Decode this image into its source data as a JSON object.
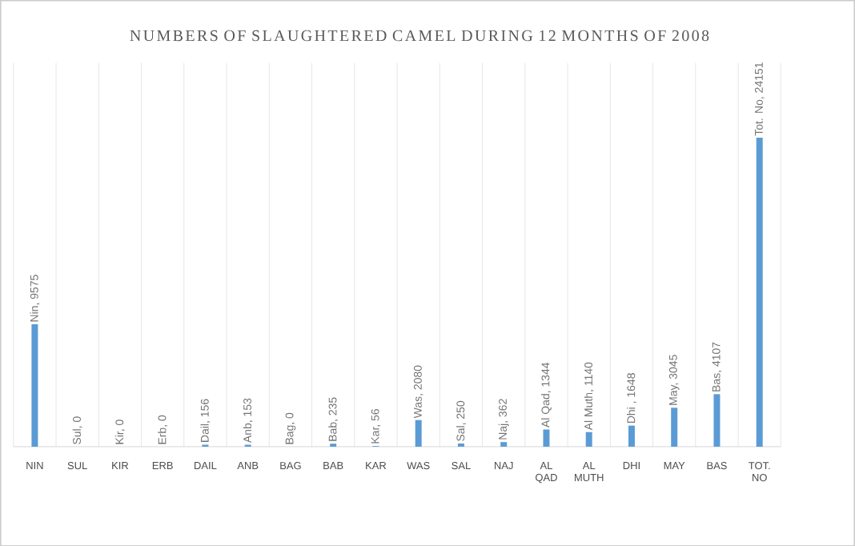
{
  "chart_data": {
    "type": "bar",
    "title": "NUMBERS OF SLAUGHTERED CAMEL DURING 12 MONTHS OF 2008",
    "categories": [
      "NIN",
      "SUL",
      "KIR",
      "ERB",
      "DAIL",
      "ANB",
      "BAG",
      "BAB",
      "KAR",
      "WAS",
      "SAL",
      "NAJ",
      "AL QAD",
      "AL MUTH",
      "DHI",
      "MAY",
      "BAS",
      "TOT. NO"
    ],
    "values": [
      9575,
      0,
      0,
      0,
      156,
      153,
      0,
      235,
      56,
      2080,
      250,
      362,
      1344,
      1140,
      1648,
      3045,
      4107,
      24151
    ],
    "value_labels": [
      "Nin, 9575",
      "Sul, 0",
      "Kir, 0",
      "Erb, 0",
      "Dail, 156",
      "Anb, 153",
      "Bag, 0",
      "Bab, 235",
      "Kar, 56",
      "Was, 2080",
      "Sal, 250",
      "Naj, 362",
      "Al Qad, 1344",
      "Al Muth, 1140",
      "Dhi , 1648",
      "May, 3045",
      "Bas, 4107",
      "Tot. No, 24151"
    ],
    "color": "#5b9bd5",
    "ylim": [
      0,
      30000
    ],
    "grid": "x"
  }
}
